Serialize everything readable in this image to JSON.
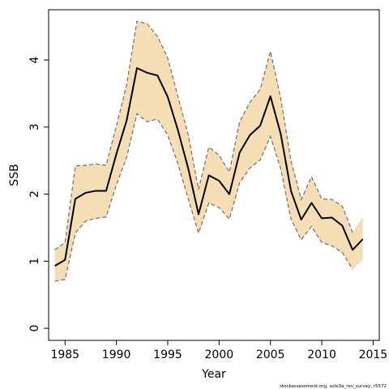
{
  "chart_data": {
    "type": "line",
    "title": "",
    "xlabel": "Year",
    "ylabel": "SSB",
    "xlim": [
      1983.4,
      2015.6
    ],
    "ylim": [
      -0.18,
      4.75
    ],
    "x_ticks": [
      1985,
      1990,
      1995,
      2000,
      2005,
      2010,
      2015
    ],
    "y_ticks": [
      0,
      1,
      2,
      3,
      4
    ],
    "grid": false,
    "legend": "none",
    "colors": {
      "band": "#f5deb3",
      "line": "#000000",
      "band_line": "#7a6a6a"
    },
    "x": [
      1984,
      1985,
      1986,
      1987,
      1988,
      1989,
      1990,
      1991,
      1992,
      1993,
      1994,
      1995,
      1996,
      1997,
      1998,
      1999,
      2000,
      2001,
      2002,
      2003,
      2004,
      2005,
      2006,
      2007,
      2008,
      2009,
      2010,
      2011,
      2012,
      2013,
      2014
    ],
    "series": [
      {
        "role": "estimate",
        "values": [
          0.93,
          1.02,
          1.93,
          2.02,
          2.05,
          2.05,
          2.6,
          3.1,
          3.88,
          3.81,
          3.77,
          3.45,
          2.95,
          2.38,
          1.7,
          2.28,
          2.2,
          2.0,
          2.62,
          2.88,
          3.02,
          3.46,
          2.9,
          2.05,
          1.62,
          1.87,
          1.64,
          1.65,
          1.53,
          1.17,
          1.33
        ]
      },
      {
        "role": "upper",
        "values": [
          1.17,
          1.28,
          2.42,
          2.43,
          2.45,
          2.43,
          3.02,
          3.63,
          4.58,
          4.54,
          4.35,
          4.03,
          3.45,
          2.88,
          2.07,
          2.7,
          2.58,
          2.33,
          3.08,
          3.37,
          3.56,
          4.13,
          3.43,
          2.5,
          1.92,
          2.26,
          1.93,
          1.92,
          1.82,
          1.43,
          1.66
        ]
      },
      {
        "role": "lower",
        "values": [
          0.7,
          0.73,
          1.42,
          1.6,
          1.64,
          1.66,
          2.14,
          2.55,
          3.2,
          3.08,
          3.12,
          2.88,
          2.45,
          1.93,
          1.42,
          1.87,
          1.8,
          1.63,
          2.17,
          2.39,
          2.51,
          2.86,
          2.38,
          1.63,
          1.32,
          1.52,
          1.28,
          1.23,
          1.13,
          0.88,
          1.03
        ]
      }
    ],
    "dashed_upper_end": 2013,
    "dashed_lower_end": 2013
  },
  "credit": "stockassessment.org, sole3a_rev_survey, r5572"
}
